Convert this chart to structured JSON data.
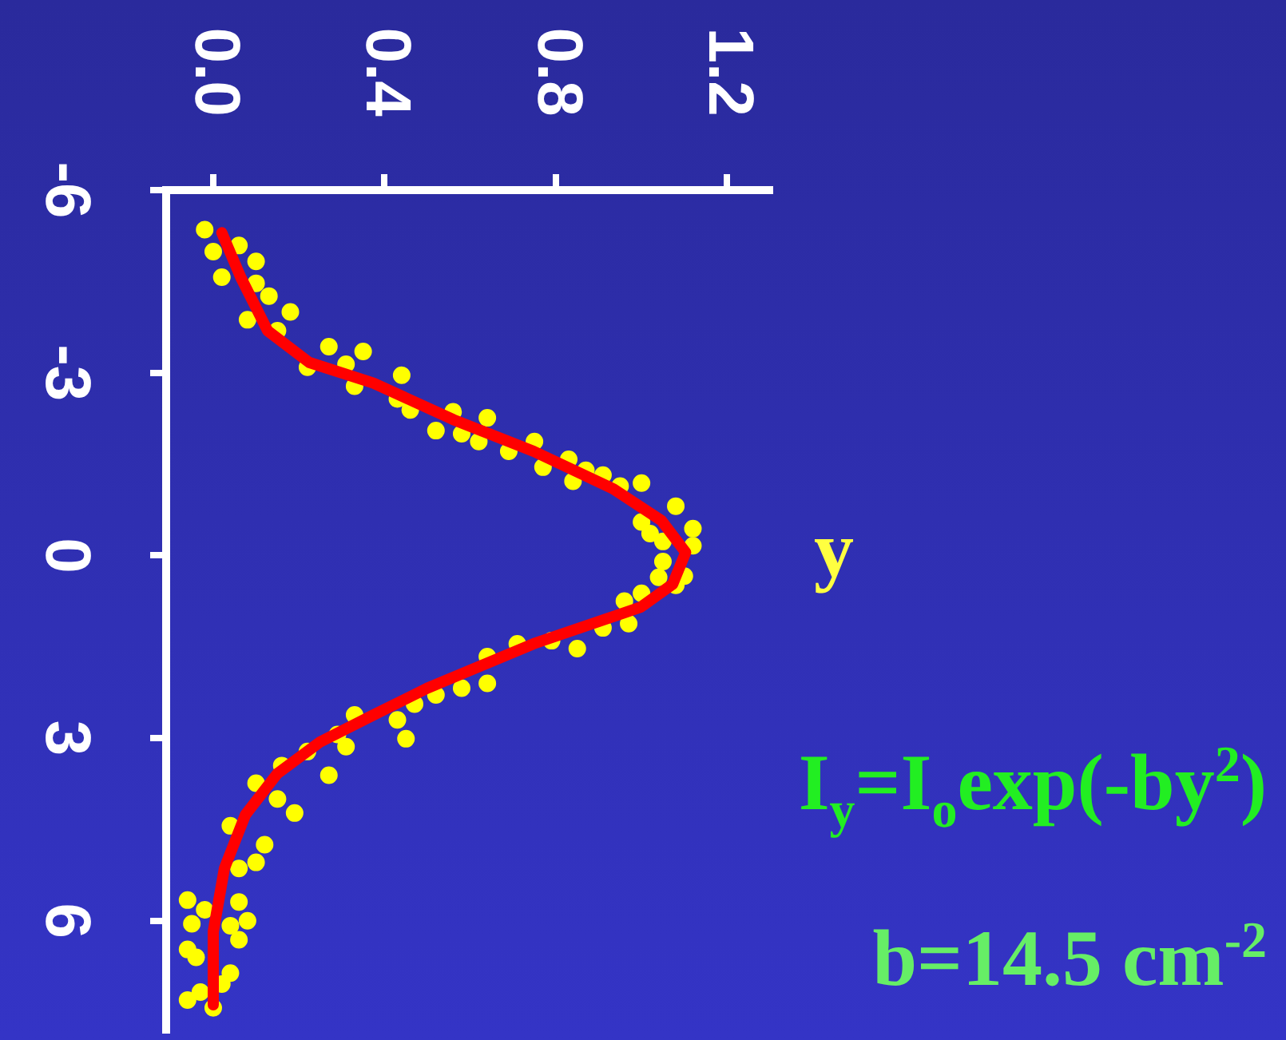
{
  "chart_data": {
    "type": "scatter",
    "ylabel": "y",
    "annotations": [
      "I$_{y}$=I$_{o}$exp(-by$^{2}$)",
      "b=14.5 cm$^{-2}$"
    ],
    "xlim": [
      -0.11,
      1.3
    ],
    "xticks": [
      {
        "value": 0,
        "label": "0.0"
      },
      {
        "value": 0.4,
        "label": "0.4"
      },
      {
        "value": 0.8,
        "label": "0.8"
      },
      {
        "value": 1.2,
        "label": "1.2"
      }
    ],
    "ylim": [
      7.8,
      -6
    ],
    "yticks": [
      -6,
      -3,
      0,
      3,
      6
    ],
    "grid": false,
    "legend": false,
    "series": [
      {
        "color": "#ffff00",
        "marker": "circle",
        "x": [
          -0.02,
          0.0,
          0.02,
          0.06,
          0.1,
          0.1,
          0.13,
          0.08,
          0.18,
          0.15,
          0.22,
          0.27,
          0.35,
          0.31,
          0.33,
          0.44,
          0.43,
          0.46,
          0.52,
          0.56,
          0.58,
          0.62,
          0.64,
          0.69,
          0.75,
          0.77,
          0.83,
          0.84,
          0.87,
          0.91,
          0.95,
          1.0,
          1.0,
          1.02,
          1.08,
          1.12,
          1.12,
          1.05,
          1.05,
          1.1,
          1.04,
          1.08,
          0.96,
          1.0,
          0.97,
          0.91,
          0.85,
          0.79,
          0.71,
          0.64,
          0.64,
          0.58,
          0.52,
          0.47,
          0.43,
          0.45,
          0.33,
          0.29,
          0.31,
          0.27,
          0.22,
          0.16,
          0.19,
          0.1,
          0.15,
          0.12,
          0.1,
          0.04,
          0.06,
          0.06,
          0.08,
          0.06,
          0.04,
          -0.06,
          -0.05,
          -0.06,
          -0.04,
          -0.02,
          0.04,
          0.02,
          -0.06,
          -0.03,
          0.0
        ],
        "values": [
          -5.35,
          -4.99,
          -4.57,
          -5.09,
          -4.83,
          -4.47,
          -4.26,
          -3.87,
          -4.0,
          -3.69,
          -3.09,
          -3.43,
          -3.35,
          -3.14,
          -2.78,
          -2.96,
          -2.57,
          -2.39,
          -2.05,
          -2.36,
          -2.0,
          -1.87,
          -2.26,
          -1.71,
          -1.87,
          -1.45,
          -1.58,
          -1.22,
          -1.4,
          -1.32,
          -1.14,
          -1.19,
          -0.55,
          -0.36,
          -0.81,
          -0.44,
          -0.16,
          -0.23,
          0.1,
          0.34,
          0.36,
          0.49,
          0.75,
          0.62,
          1.12,
          1.19,
          1.53,
          1.4,
          1.45,
          1.66,
          2.1,
          2.18,
          2.29,
          2.44,
          2.7,
          3.01,
          2.62,
          2.94,
          3.14,
          3.61,
          3.22,
          3.45,
          4.23,
          3.74,
          4.0,
          4.75,
          5.04,
          4.44,
          5.14,
          5.69,
          6.0,
          6.31,
          6.08,
          5.66,
          6.05,
          6.47,
          6.6,
          5.82,
          6.86,
          7.04,
          7.3,
          7.17,
          7.43
        ]
      },
      {
        "type": "line",
        "color": "#ff0000",
        "line_style": "solid",
        "marker": "none",
        "x": [
          0.02,
          0.064,
          0.127,
          0.224,
          0.374,
          0.561,
          0.748,
          0.935,
          1.047,
          1.103,
          1.073,
          0.998,
          0.748,
          0.5,
          0.374,
          0.25,
          0.15,
          0.075,
          0.026,
          0.0,
          0.0
        ],
        "values": [
          -5.3,
          -4.57,
          -3.69,
          -3.17,
          -2.83,
          -2.23,
          -1.71,
          -1.09,
          -0.57,
          -0.05,
          0.47,
          0.85,
          1.45,
          2.18,
          2.62,
          3.06,
          3.58,
          4.26,
          5.14,
          6.18,
          7.38
        ]
      }
    ]
  }
}
